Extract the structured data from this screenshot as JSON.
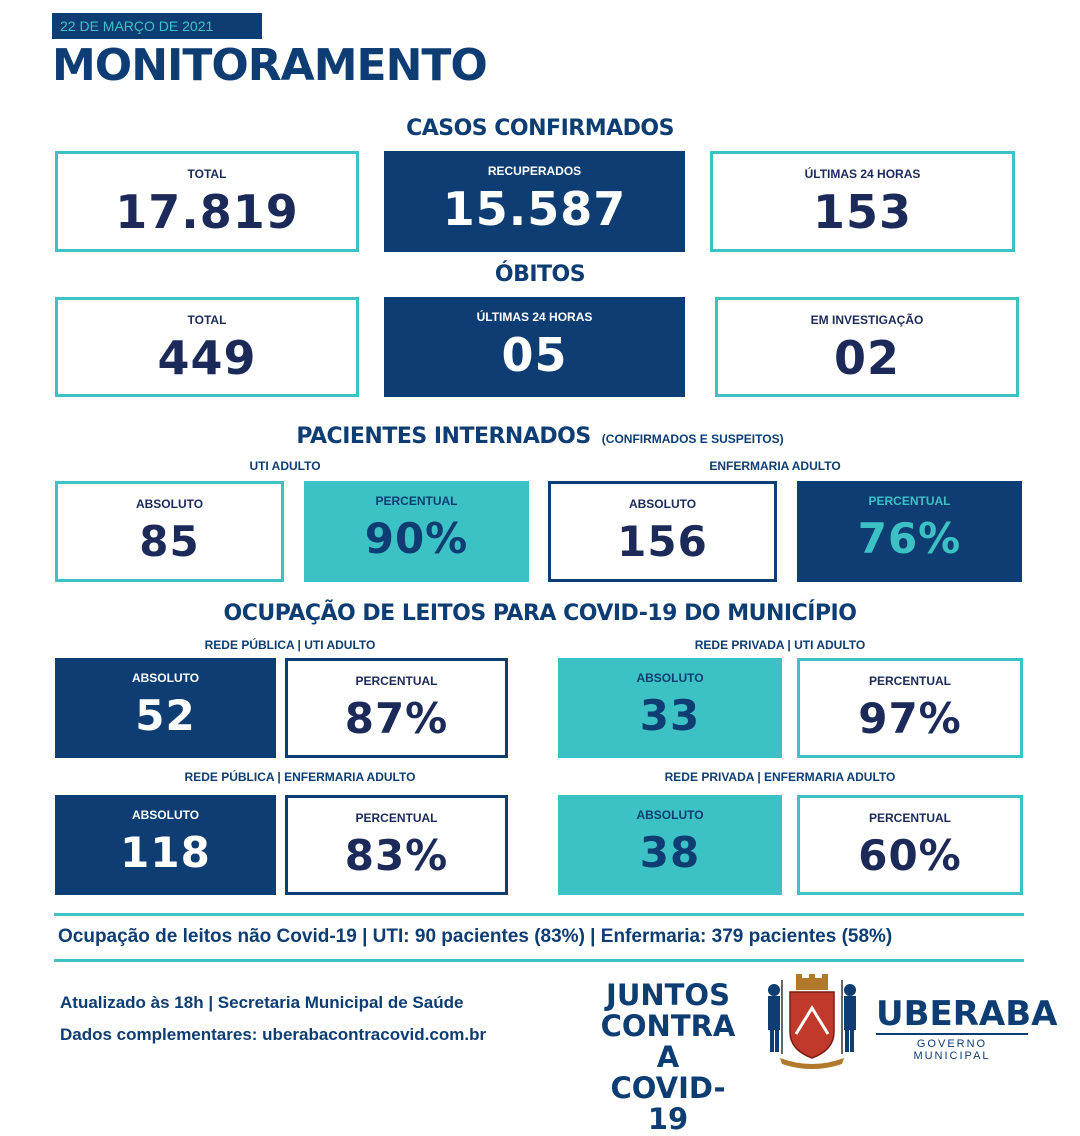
{
  "header": {
    "date": "22 DE MARÇO DE 2021",
    "title": "MONITORAMENTO"
  },
  "casos": {
    "title": "CASOS CONFIRMADOS",
    "total": {
      "label": "TOTAL",
      "value": "17.819"
    },
    "recuperados": {
      "label": "RECUPERADOS",
      "value": "15.587"
    },
    "ultimas24": {
      "label": "ÚLTIMAS 24 HORAS",
      "value": "153"
    }
  },
  "obitos": {
    "title": "ÓBITOS",
    "total": {
      "label": "TOTAL",
      "value": "449"
    },
    "ultimas24": {
      "label": "ÚLTIMAS 24 HORAS",
      "value": "05"
    },
    "investigacao": {
      "label": "EM INVESTIGAÇÃO",
      "value": "02"
    }
  },
  "internados": {
    "title": "PACIENTES INTERNADOS",
    "note": "(CONFIRMADOS E SUSPEITOS)",
    "uti_label": "UTI ADULTO",
    "enf_label": "ENFERMARIA ADULTO",
    "uti_abs": {
      "label": "ABSOLUTO",
      "value": "85"
    },
    "uti_pct": {
      "label": "PERCENTUAL",
      "value": "90%"
    },
    "enf_abs": {
      "label": "ABSOLUTO",
      "value": "156"
    },
    "enf_pct": {
      "label": "PERCENTUAL",
      "value": "76%"
    }
  },
  "ocupacao": {
    "title": "OCUPAÇÃO DE LEITOS PARA COVID-19 DO MUNICÍPIO",
    "pub_uti_label": "REDE PÚBLICA | UTI ADULTO",
    "priv_uti_label": "REDE PRIVADA | UTI ADULTO",
    "pub_enf_label": "REDE PÚBLICA | ENFERMARIA ADULTO",
    "priv_enf_label": "REDE PRIVADA | ENFERMARIA ADULTO",
    "pub_uti_abs": {
      "label": "ABSOLUTO",
      "value": "52"
    },
    "pub_uti_pct": {
      "label": "PERCENTUAL",
      "value": "87%"
    },
    "priv_uti_abs": {
      "label": "ABSOLUTO",
      "value": "33"
    },
    "priv_uti_pct": {
      "label": "PERCENTUAL",
      "value": "97%"
    },
    "pub_enf_abs": {
      "label": "ABSOLUTO",
      "value": "118"
    },
    "pub_enf_pct": {
      "label": "PERCENTUAL",
      "value": "83%"
    },
    "priv_enf_abs": {
      "label": "ABSOLUTO",
      "value": "38"
    },
    "priv_enf_pct": {
      "label": "PERCENTUAL",
      "value": "60%"
    }
  },
  "non_covid": "Ocupação de leitos não Covid-19 | UTI: 90 pacientes (83%) | Enfermaria: 379 pacientes (58%)",
  "footer": {
    "updated": "Atualizado às 18h | Secretaria Municipal de Saúde",
    "more": "Dados complementares: uberabacontracovid.com.br",
    "campaign": [
      "JUNTOS",
      "CONTRA A",
      "COVID-19"
    ],
    "brand": "UBERABA",
    "brand_sub": "GOVERNO MUNICIPAL",
    "coat_of_arms_icon": "coat-of-arms-icon"
  },
  "colors": {
    "navy": "#0d3d72",
    "teal": "#3cc2c4",
    "text": "#1c2a5a"
  }
}
